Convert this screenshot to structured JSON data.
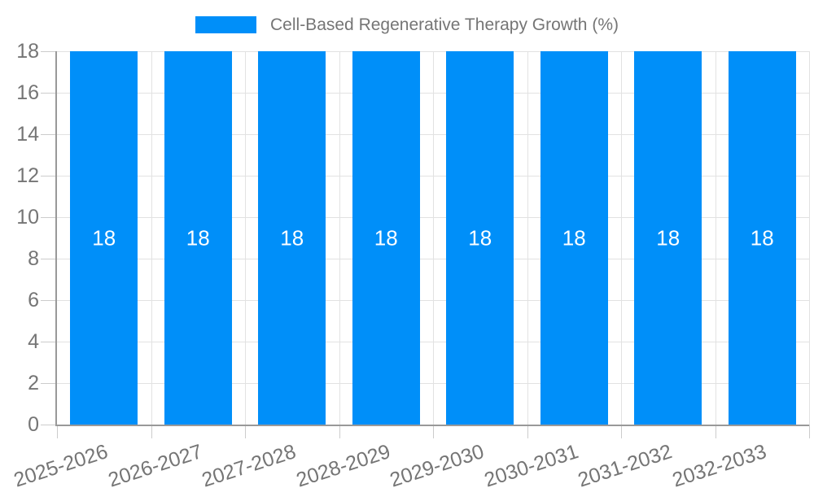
{
  "chart_data": {
    "type": "bar",
    "title": "Cell-Based Regenerative Therapy Growth (%)",
    "categories": [
      "2025-2026",
      "2026-2027",
      "2027-2028",
      "2028-2029",
      "2029-2030",
      "2030-2031",
      "2031-2032",
      "2032-2033"
    ],
    "values": [
      18,
      18,
      18,
      18,
      18,
      18,
      18,
      18
    ],
    "bar_value_labels": [
      "18",
      "18",
      "18",
      "18",
      "18",
      "18",
      "18",
      "18"
    ],
    "xlabel": "",
    "ylabel": "",
    "ylim": [
      0,
      18
    ],
    "yticks": [
      0,
      2,
      4,
      6,
      8,
      10,
      12,
      14,
      16,
      18
    ],
    "grid": true,
    "legend_position": "top",
    "legend_entries": [
      "Cell-Based Regenerative Therapy Growth (%)"
    ],
    "colors": {
      "bar": "#008ff9",
      "bar_value_label": "#ffffff",
      "axis_text": "#757575",
      "legend_text": "#757575",
      "gridline": "#e2e2e2",
      "tick": "#cccccc",
      "axis_line": "#999999",
      "background": "#ffffff"
    }
  }
}
